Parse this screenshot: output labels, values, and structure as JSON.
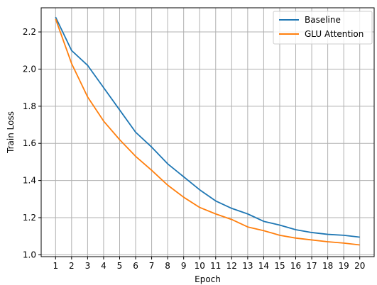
{
  "chart_data": {
    "type": "line",
    "title": "",
    "xlabel": "Epoch",
    "ylabel": "Train Loss",
    "x": [
      1,
      2,
      3,
      4,
      5,
      6,
      7,
      8,
      9,
      10,
      11,
      12,
      13,
      14,
      15,
      16,
      17,
      18,
      19,
      20
    ],
    "xlim": [
      0.1,
      20.9
    ],
    "ylim": [
      0.99,
      2.33
    ],
    "xticks": [
      1,
      2,
      3,
      4,
      5,
      6,
      7,
      8,
      9,
      10,
      11,
      12,
      13,
      14,
      15,
      16,
      17,
      18,
      19,
      20
    ],
    "yticks": [
      1.0,
      1.2,
      1.4,
      1.6,
      1.8,
      2.0,
      2.2
    ],
    "grid": true,
    "legend_position": "top-right",
    "series": [
      {
        "name": "Baseline",
        "color": "#1f77b4",
        "values": [
          2.28,
          2.1,
          2.02,
          1.9,
          1.78,
          1.66,
          1.58,
          1.49,
          1.42,
          1.35,
          1.29,
          1.25,
          1.22,
          1.18,
          1.16,
          1.135,
          1.12,
          1.11,
          1.105,
          1.095
        ]
      },
      {
        "name": "GLU Attention",
        "color": "#ff7f0e",
        "values": [
          2.27,
          2.03,
          1.85,
          1.72,
          1.62,
          1.53,
          1.455,
          1.375,
          1.31,
          1.255,
          1.22,
          1.19,
          1.15,
          1.13,
          1.105,
          1.09,
          1.08,
          1.07,
          1.063,
          1.053
        ]
      }
    ]
  }
}
